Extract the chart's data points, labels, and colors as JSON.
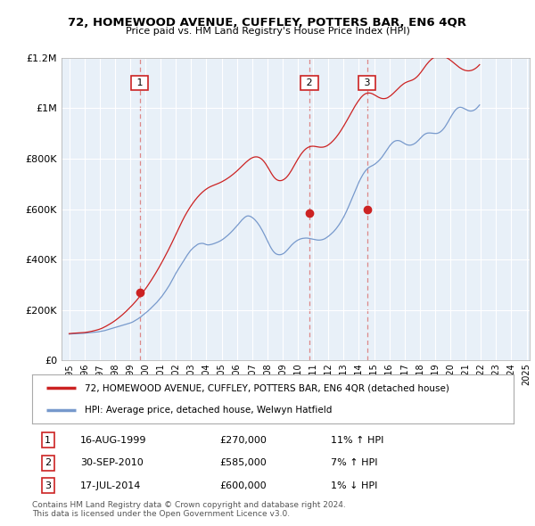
{
  "title": "72, HOMEWOOD AVENUE, CUFFLEY, POTTERS BAR, EN6 4QR",
  "subtitle": "Price paid vs. HM Land Registry's House Price Index (HPI)",
  "legend_line1": "72, HOMEWOOD AVENUE, CUFFLEY, POTTERS BAR, EN6 4QR (detached house)",
  "legend_line2": "HPI: Average price, detached house, Welwyn Hatfield",
  "footer1": "Contains HM Land Registry data © Crown copyright and database right 2024.",
  "footer2": "This data is licensed under the Open Government Licence v3.0.",
  "sale_events": [
    {
      "num": 1,
      "date": "16-AUG-1999",
      "price": 270000,
      "year": 1999.62,
      "hpi_pct": "11%",
      "hpi_dir": "↑"
    },
    {
      "num": 2,
      "date": "30-SEP-2010",
      "price": 585000,
      "year": 2010.75,
      "hpi_pct": "7%",
      "hpi_dir": "↑"
    },
    {
      "num": 3,
      "date": "17-JUL-2014",
      "price": 600000,
      "year": 2014.54,
      "hpi_pct": "1%",
      "hpi_dir": "↓"
    }
  ],
  "red_line_color": "#cc2222",
  "blue_line_color": "#7799cc",
  "dashed_color": "#dd8888",
  "box_facecolor": "white",
  "box_edgecolor": "#cc2222",
  "box_textcolor": "black",
  "plot_bg_color": "#e8f0f8",
  "ylim": [
    0,
    1200000
  ],
  "yticks": [
    0,
    200000,
    400000,
    600000,
    800000,
    1000000,
    1200000
  ],
  "ytick_labels": [
    "£0",
    "£200K",
    "£400K",
    "£600K",
    "£800K",
    "£1M",
    "£1.2M"
  ],
  "xlim": [
    1994.5,
    2025.2
  ],
  "xticks": [
    1995,
    1996,
    1997,
    1998,
    1999,
    2000,
    2001,
    2002,
    2003,
    2004,
    2005,
    2006,
    2007,
    2008,
    2009,
    2010,
    2011,
    2012,
    2013,
    2014,
    2015,
    2016,
    2017,
    2018,
    2019,
    2020,
    2021,
    2022,
    2023,
    2024,
    2025
  ],
  "hpi_monthly": {
    "start_year": 1995,
    "start_month": 1,
    "hpi_values": [
      104000,
      104500,
      105000,
      105200,
      105400,
      105600,
      105800,
      106000,
      106200,
      106400,
      106600,
      107000,
      107500,
      108000,
      108500,
      109000,
      109500,
      110000,
      110500,
      111000,
      111500,
      112000,
      112500,
      113000,
      114000,
      115000,
      116000,
      117000,
      118000,
      119500,
      121000,
      122500,
      124000,
      125500,
      127000,
      128500,
      130000,
      131500,
      133000,
      134500,
      136000,
      137500,
      139000,
      140500,
      142000,
      143500,
      145000,
      146500,
      148000,
      150000,
      152000,
      155000,
      158000,
      161000,
      164000,
      167500,
      171000,
      175000,
      179000,
      183000,
      187000,
      191000,
      195500,
      200000,
      205000,
      210000,
      215000,
      220000,
      225000,
      230000,
      236000,
      242000,
      248000,
      254000,
      261000,
      268000,
      275500,
      283000,
      291000,
      299000,
      308000,
      317000,
      326500,
      336000,
      345500,
      354000,
      362000,
      370000,
      378000,
      386000,
      394000,
      402000,
      410000,
      418000,
      425000,
      432000,
      438000,
      443000,
      448000,
      452000,
      456000,
      459500,
      462000,
      463000,
      464000,
      464000,
      463000,
      461000,
      459000,
      458000,
      458000,
      459000,
      460000,
      461500,
      463000,
      465000,
      467000,
      469000,
      471500,
      474000,
      477000,
      480500,
      484000,
      488000,
      492000,
      496500,
      501000,
      506000,
      511000,
      516500,
      522000,
      527500,
      533000,
      539000,
      545000,
      551000,
      557000,
      562000,
      566500,
      570000,
      572500,
      573000,
      572000,
      570000,
      567000,
      563000,
      558500,
      553000,
      547000,
      540000,
      532500,
      524000,
      515000,
      505500,
      495500,
      485000,
      474500,
      464000,
      454000,
      445000,
      437000,
      430500,
      425500,
      422000,
      420000,
      419000,
      419000,
      420000,
      422000,
      425000,
      429000,
      434000,
      439500,
      445500,
      451500,
      457000,
      462000,
      466500,
      470500,
      474000,
      477000,
      479500,
      481500,
      483000,
      484000,
      484500,
      485000,
      485000,
      484500,
      483500,
      482500,
      481500,
      480500,
      479500,
      478500,
      477500,
      477000,
      477000,
      477500,
      478500,
      480000,
      482000,
      485000,
      488500,
      492000,
      496000,
      500500,
      505000,
      510000,
      515500,
      521500,
      528000,
      535000,
      542500,
      550500,
      559000,
      568000,
      578000,
      588500,
      599500,
      611000,
      623000,
      635000,
      647500,
      660000,
      672000,
      684000,
      695500,
      706500,
      717000,
      726500,
      735500,
      743500,
      750500,
      756500,
      761500,
      765500,
      768500,
      771000,
      773500,
      776500,
      780000,
      784000,
      788500,
      793500,
      799000,
      805000,
      812000,
      819500,
      827000,
      834500,
      842000,
      849000,
      855500,
      861000,
      865500,
      869000,
      871000,
      872000,
      872000,
      871000,
      869000,
      866000,
      863000,
      860000,
      857000,
      855000,
      854000,
      853500,
      854000,
      855500,
      857500,
      860500,
      864000,
      868500,
      873500,
      879000,
      884500,
      889500,
      894000,
      897500,
      900000,
      901500,
      902000,
      902000,
      901500,
      901000,
      900500,
      900000,
      900000,
      901000,
      903000,
      906000,
      910000,
      915000,
      921000,
      928000,
      936000,
      944500,
      953500,
      962500,
      971000,
      979000,
      986500,
      993000,
      998000,
      1001500,
      1003500,
      1004000,
      1003000,
      1001000,
      998500,
      996000,
      993500,
      991000,
      989500,
      989000,
      989500,
      991000,
      993500,
      997000,
      1001500,
      1007000,
      1013000
    ],
    "red_hpi_values": [
      106000,
      106500,
      107000,
      107300,
      107600,
      107900,
      108200,
      108500,
      108800,
      109100,
      109400,
      109800,
      110300,
      110900,
      111600,
      112400,
      113300,
      114300,
      115400,
      116600,
      117800,
      119100,
      120500,
      122000,
      123600,
      125500,
      127600,
      130000,
      132500,
      135200,
      138000,
      141000,
      144000,
      147000,
      150200,
      153500,
      157000,
      160700,
      164500,
      168500,
      172600,
      176800,
      181100,
      185600,
      190200,
      195000,
      200000,
      205000,
      210000,
      215200,
      220500,
      226000,
      231600,
      237500,
      243500,
      249700,
      256000,
      262500,
      269100,
      276000,
      283000,
      290200,
      297500,
      305000,
      312700,
      320500,
      328500,
      336700,
      345000,
      353500,
      362200,
      371000,
      380000,
      389200,
      398500,
      408000,
      417500,
      427200,
      437000,
      447000,
      457200,
      467500,
      478000,
      488700,
      499500,
      510200,
      521000,
      531700,
      542200,
      552500,
      562500,
      572000,
      581000,
      589700,
      598000,
      606000,
      613700,
      621000,
      628000,
      634700,
      641000,
      647000,
      652700,
      658000,
      663000,
      667700,
      672000,
      676000,
      679700,
      683000,
      686000,
      688700,
      691000,
      693000,
      695000,
      697000,
      699000,
      701000,
      703200,
      705500,
      708000,
      710700,
      713500,
      716500,
      719700,
      723000,
      726500,
      730200,
      734000,
      738000,
      742200,
      746500,
      751000,
      755700,
      760500,
      765500,
      770500,
      775500,
      780300,
      785000,
      789400,
      793600,
      797400,
      800700,
      803400,
      805500,
      806800,
      807300,
      807000,
      805700,
      803500,
      800300,
      796100,
      790700,
      784300,
      777000,
      769000,
      760500,
      751700,
      743000,
      735000,
      728000,
      722300,
      718000,
      715000,
      713200,
      712700,
      713300,
      715000,
      717700,
      721300,
      726000,
      731700,
      738300,
      745800,
      754000,
      762700,
      771700,
      780800,
      789700,
      798300,
      806500,
      814200,
      821200,
      827500,
      833000,
      837800,
      841700,
      844700,
      847000,
      848500,
      849300,
      849400,
      849000,
      848200,
      847200,
      846300,
      845700,
      845400,
      845500,
      846000,
      847200,
      849000,
      851500,
      854700,
      858500,
      862700,
      867500,
      872700,
      878200,
      884200,
      890700,
      897700,
      905000,
      912700,
      920700,
      929000,
      937500,
      946200,
      955200,
      964300,
      973500,
      982700,
      991700,
      1000500,
      1009000,
      1017000,
      1024700,
      1032000,
      1038700,
      1044700,
      1049800,
      1054000,
      1057200,
      1059300,
      1060500,
      1060700,
      1060100,
      1058700,
      1056600,
      1054000,
      1051000,
      1048000,
      1045000,
      1042500,
      1040500,
      1039000,
      1038300,
      1038300,
      1039000,
      1040500,
      1043000,
      1046300,
      1050000,
      1054200,
      1058800,
      1063700,
      1068700,
      1073800,
      1078800,
      1083700,
      1088300,
      1092500,
      1096300,
      1099700,
      1102500,
      1104800,
      1106700,
      1108300,
      1110000,
      1112000,
      1114500,
      1117700,
      1121600,
      1126200,
      1131500,
      1137500,
      1144000,
      1151000,
      1158200,
      1165300,
      1172000,
      1178200,
      1184000,
      1189200,
      1193800,
      1197800,
      1201200,
      1204000,
      1206000,
      1207700,
      1208700,
      1209000,
      1208300,
      1207200,
      1205500,
      1203500,
      1201000,
      1198000,
      1194700,
      1191000,
      1187000,
      1182800,
      1178500,
      1174200,
      1170000,
      1166000,
      1162300,
      1159000,
      1156000,
      1153500,
      1151500,
      1150000,
      1149000,
      1148500,
      1148800,
      1149700,
      1151000,
      1153000,
      1155700,
      1159000,
      1163000,
      1167700,
      1173000
    ]
  }
}
